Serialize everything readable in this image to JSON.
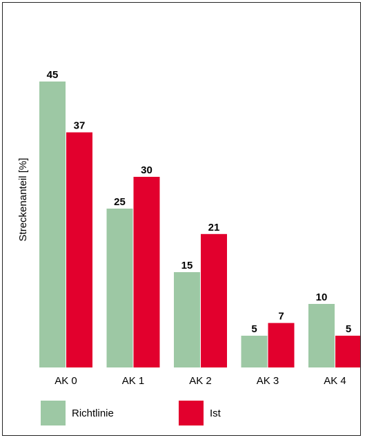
{
  "chart_data": {
    "type": "bar",
    "categories": [
      "AK 0",
      "AK 1",
      "AK 2",
      "AK 3",
      "AK 4"
    ],
    "series": [
      {
        "name": "Richtlinie",
        "color": "#9dc8a4",
        "values": [
          45,
          25,
          15,
          5,
          10
        ]
      },
      {
        "name": "Ist",
        "color": "#e2002d",
        "values": [
          37,
          30,
          21,
          7,
          5
        ]
      }
    ],
    "title": "",
    "xlabel": "",
    "ylabel": "Streckenanteil [%]",
    "ylim": [
      0,
      48
    ],
    "grid": false,
    "legend": "bottom-left",
    "data_labels": true
  }
}
